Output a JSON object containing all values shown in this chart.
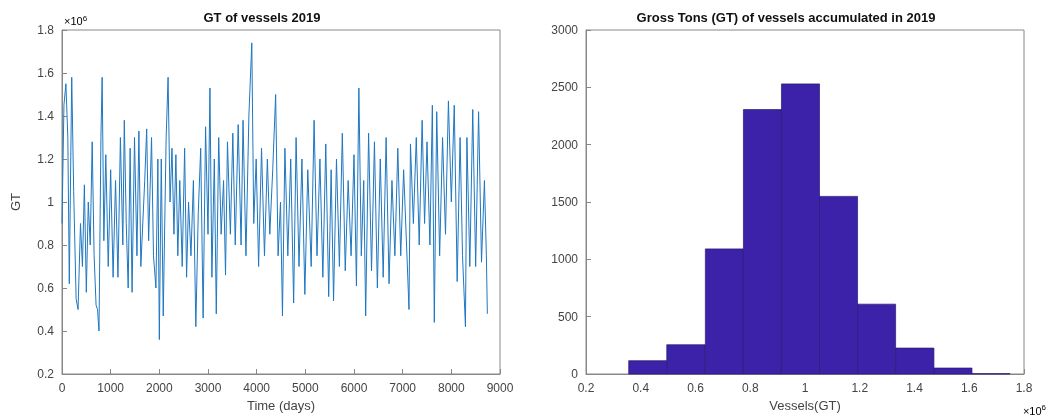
{
  "chart_data": [
    {
      "type": "line",
      "title": "GT of vessels 2019",
      "xlabel": "Time (days)",
      "ylabel": "GT",
      "annotations": [
        "×10$^{6}$"
      ],
      "x": [
        0,
        40,
        80,
        120,
        150,
        200,
        240,
        290,
        330,
        380,
        420,
        460,
        500,
        540,
        580,
        620,
        660,
        700,
        730,
        760,
        800,
        825,
        860,
        900,
        950,
        1000,
        1050,
        1100,
        1150,
        1200,
        1250,
        1280,
        1320,
        1360,
        1400,
        1440,
        1490,
        1540,
        1580,
        1620,
        1700,
        1740,
        1780,
        1840,
        1880,
        1930,
        1970,
        2000,
        2040,
        2080,
        2140,
        2180,
        2220,
        2260,
        2300,
        2340,
        2380,
        2420,
        2470,
        2520,
        2560,
        2600,
        2650,
        2700,
        2750,
        2800,
        2850,
        2900,
        2950,
        3000,
        3040,
        3080,
        3130,
        3170,
        3220,
        3270,
        3320,
        3360,
        3400,
        3460,
        3510,
        3560,
        3620,
        3680,
        3720,
        3780,
        3840,
        3900,
        3940,
        3990,
        4040,
        4100,
        4160,
        4220,
        4270,
        4330,
        4390,
        4440,
        4490,
        4530,
        4580,
        4640,
        4700,
        4760,
        4810,
        4870,
        4930,
        4990,
        5050,
        5120,
        5180,
        5240,
        5300,
        5360,
        5420,
        5480,
        5530,
        5580,
        5640,
        5700,
        5760,
        5820,
        5880,
        5940,
        6000,
        6050,
        6100,
        6150,
        6200,
        6240,
        6300,
        6360,
        6420,
        6480,
        6540,
        6600,
        6660,
        6720,
        6780,
        6840,
        6900,
        6960,
        7020,
        7080,
        7130,
        7160,
        7220,
        7280,
        7340,
        7400,
        7450,
        7500,
        7560,
        7610,
        7650,
        7700,
        7760,
        7820,
        7880,
        7940,
        8000,
        8060,
        8120,
        8180,
        8230,
        8290,
        8320,
        8380,
        8440,
        8500,
        8560,
        8620,
        8680,
        8720,
        8740
      ],
      "series": [
        {
          "color": "#1f77c0",
          "values": [
            0.9,
            1.45,
            1.55,
            1.3,
            0.62,
            1.58,
            1.05,
            0.55,
            0.5,
            0.9,
            0.7,
            1.08,
            0.58,
            1.0,
            0.8,
            1.28,
            0.75,
            0.52,
            0.5,
            0.4,
            1.3,
            1.58,
            0.82,
            1.22,
            0.7,
            1.15,
            0.65,
            1.1,
            0.65,
            1.3,
            0.8,
            1.38,
            0.9,
            0.6,
            1.25,
            0.58,
            1.3,
            0.75,
            1.33,
            0.7,
            1.1,
            1.34,
            0.82,
            1.3,
            0.75,
            0.6,
            1.2,
            0.36,
            1.2,
            0.47,
            1.3,
            1.58,
            1.0,
            1.25,
            0.85,
            1.22,
            0.75,
            1.1,
            0.7,
            1.25,
            0.65,
            1.0,
            0.75,
            1.1,
            0.42,
            0.95,
            1.25,
            0.46,
            1.35,
            0.85,
            1.53,
            0.65,
            1.2,
            0.48,
            1.3,
            0.85,
            1.1,
            0.66,
            1.28,
            0.85,
            1.32,
            0.8,
            1.36,
            0.8,
            1.38,
            0.75,
            1.4,
            1.74,
            0.9,
            1.2,
            0.7,
            1.25,
            0.75,
            1.2,
            0.85,
            1.15,
            1.5,
            0.75,
            1.0,
            0.47,
            1.25,
            0.75,
            1.2,
            0.53,
            1.3,
            0.7,
            1.2,
            0.57,
            1.15,
            0.7,
            1.38,
            0.75,
            1.2,
            0.65,
            1.27,
            0.56,
            1.15,
            0.54,
            1.2,
            0.7,
            1.32,
            0.68,
            1.1,
            0.75,
            1.22,
            0.61,
            1.53,
            0.75,
            1.1,
            0.47,
            1.32,
            0.68,
            1.28,
            0.6,
            1.2,
            0.65,
            1.3,
            0.62,
            1.1,
            0.75,
            1.25,
            0.75,
            1.15,
            0.8,
            0.5,
            1.27,
            0.9,
            1.3,
            0.8,
            1.38,
            0.9,
            1.28,
            0.8,
            1.45,
            0.44,
            1.42,
            0.75,
            1.3,
            0.85,
            1.47,
            1.0,
            1.45,
            0.63,
            1.3,
            0.75,
            0.42,
            1.3,
            0.7,
            1.43,
            0.7,
            1.42,
            0.72,
            1.1,
            0.75,
            0.48
          ]
        }
      ],
      "xlim": [
        0,
        9000
      ],
      "xticks": [
        0,
        1000,
        2000,
        3000,
        4000,
        5000,
        6000,
        7000,
        8000,
        9000
      ],
      "ylim": [
        0.2,
        1.8
      ],
      "yticks": [
        0.2,
        0.4,
        0.6,
        0.8,
        1,
        1.2,
        1.4,
        1.6,
        1.8
      ],
      "grid": false,
      "marker": "none",
      "line_style": "solid"
    },
    {
      "type": "histogram",
      "title": "Gross Tons (GT) of vessels accumulated in 2019",
      "xlabel": "Vessels(GT)",
      "annotations": [
        "×10$^{6}$"
      ],
      "bins": [
        0.356,
        0.495,
        0.636,
        0.775,
        0.914,
        1.053,
        1.192,
        1.331,
        1.471,
        1.61,
        1.749
      ],
      "values": [
        116,
        255,
        1091,
        2306,
        2530,
        1549,
        609,
        226,
        52,
        3
      ],
      "color": "#3b22a8",
      "xlim": [
        0.2,
        1.8
      ],
      "xticks": [
        0.2,
        0.4,
        0.6,
        0.8,
        1,
        1.2,
        1.4,
        1.6,
        1.8
      ],
      "ylim": [
        0,
        3000
      ],
      "yticks": [
        0,
        500,
        1000,
        1500,
        2000,
        2500,
        3000
      ],
      "grid": false
    }
  ]
}
